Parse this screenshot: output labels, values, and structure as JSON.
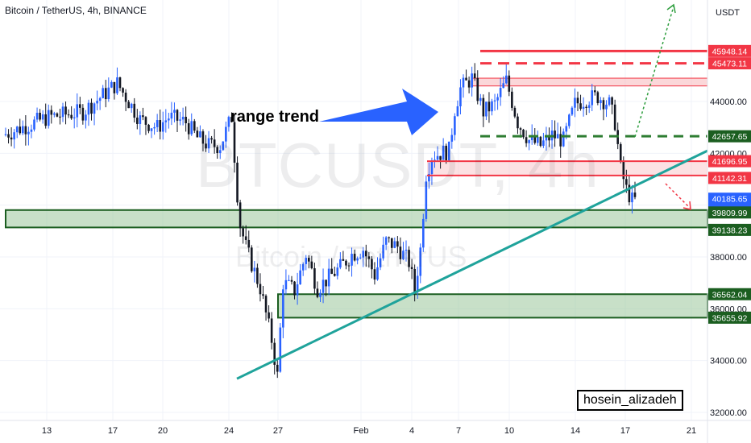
{
  "header": {
    "symbol": "Bitcoin / TetherUS, 4h, BINANCE"
  },
  "axis": {
    "unit": "USDT"
  },
  "watermark": {
    "main": "BTCUSDT, 4h",
    "sub": "Bitcoin / TetherUS"
  },
  "annotation": {
    "text": "range trend"
  },
  "author": {
    "name": "hosein_alizadeh"
  },
  "colors": {
    "up": "#2962ff",
    "down": "#131722",
    "resistance": "#f23645",
    "support": "#1b5e20",
    "support_fill": "#9bc79b",
    "trendline": "#1fa39b",
    "arrow": "#2962ff"
  },
  "price_labels": [
    {
      "text": "45948.14",
      "kind": "resistance"
    },
    {
      "text": "45473.11",
      "kind": "resistance"
    },
    {
      "text": "42657.65",
      "kind": "support"
    },
    {
      "text": "41696.95",
      "kind": "resistance"
    },
    {
      "text": "41142.31",
      "kind": "resistance"
    },
    {
      "text": "40185.65",
      "kind": "current"
    },
    {
      "text": "35:37",
      "kind": "current"
    },
    {
      "text": "39809.99",
      "kind": "support"
    },
    {
      "text": "39138.23",
      "kind": "support"
    },
    {
      "text": "36562.04",
      "kind": "support"
    },
    {
      "text": "35655.92",
      "kind": "support"
    }
  ],
  "chart_data": {
    "type": "candlestick",
    "title": "Bitcoin / TetherUS, 4h, BINANCE",
    "ylabel": "USDT",
    "y_ticks": [
      "44000.00",
      "42000.00",
      "40000.00",
      "38000.00",
      "36000.00",
      "34000.00",
      "32000.00"
    ],
    "x_ticks": [
      "13",
      "17",
      "20",
      "24",
      "27",
      "Feb",
      "4",
      "7",
      "10",
      "14",
      "17",
      "21"
    ],
    "ylim": [
      31800,
      47400
    ],
    "price_path": [
      [
        0,
        42700
      ],
      [
        4,
        43400
      ],
      [
        7,
        43600
      ],
      [
        10,
        44700
      ],
      [
        12,
        43300
      ],
      [
        13.5,
        43000
      ],
      [
        14.5,
        43400
      ],
      [
        16,
        43200
      ],
      [
        17,
        42600
      ],
      [
        18,
        42300
      ],
      [
        19,
        42300
      ],
      [
        20,
        43400
      ],
      [
        20.4,
        41000
      ],
      [
        20.7,
        39300
      ],
      [
        21.3,
        38300
      ],
      [
        22.5,
        36800
      ],
      [
        23.5,
        34800
      ],
      [
        24,
        33400
      ],
      [
        24.5,
        37000
      ],
      [
        25.5,
        36700
      ],
      [
        26.5,
        38100
      ],
      [
        27.5,
        36800
      ],
      [
        28.5,
        37200
      ],
      [
        29.5,
        37600
      ],
      [
        30.5,
        38100
      ],
      [
        31.5,
        38300
      ],
      [
        32.5,
        37300
      ],
      [
        33.5,
        38600
      ],
      [
        34.5,
        38400
      ],
      [
        35.5,
        37800
      ],
      [
        36,
        36700
      ],
      [
        36.5,
        38300
      ],
      [
        37,
        41200
      ],
      [
        37.5,
        41900
      ],
      [
        39,
        42100
      ],
      [
        39.5,
        43700
      ],
      [
        40,
        44500
      ],
      [
        41,
        44900
      ],
      [
        42,
        43600
      ],
      [
        43,
        43900
      ],
      [
        44,
        44800
      ],
      [
        44.5,
        44000
      ],
      [
        45,
        43200
      ],
      [
        46,
        42500
      ],
      [
        47,
        42300
      ],
      [
        48,
        42700
      ],
      [
        49,
        42500
      ],
      [
        50,
        43900
      ],
      [
        51,
        44100
      ],
      [
        52,
        44200
      ],
      [
        53,
        43900
      ],
      [
        53.5,
        43200
      ],
      [
        54,
        41400
      ],
      [
        54.5,
        40600
      ],
      [
        55,
        40185
      ]
    ],
    "levels": {
      "resistance_solid": [
        45948.14,
        41696.95,
        41142.31
      ],
      "resistance_dashed": [
        45473.11
      ],
      "resistance_zone": [
        44600,
        44900
      ],
      "support_dashed": [
        42657.65
      ],
      "support_zones": [
        [
          39809.99,
          39138.23
        ],
        [
          36562.04,
          35655.92
        ]
      ]
    },
    "trendline": [
      [
        24,
        33300
      ],
      [
        57.5,
        42100
      ]
    ],
    "current_price": 40185.65
  }
}
